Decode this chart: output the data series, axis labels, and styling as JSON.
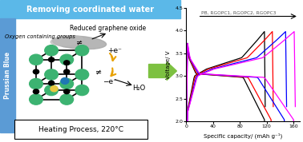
{
  "title_text": "Removing coordinated water",
  "title_bg": "#5bb8e8",
  "title_color": "white",
  "left_label": "Prussian Blue",
  "left_label_bg": "#5b9bd5",
  "top_right_label": "Reduced graphene oxide",
  "top_left_label": "Oxygen containing groups",
  "bottom_label": "Heating Process, 220°C",
  "xlabel": "Specific capacity/ (mAh g⁻¹)",
  "ylabel": "Voltage/ V",
  "ylim": [
    2.0,
    4.5
  ],
  "xlim": [
    0,
    170
  ],
  "yticks": [
    2.0,
    2.5,
    3.0,
    3.5,
    4.0,
    4.5
  ],
  "xticks": [
    0,
    40,
    80,
    120,
    160
  ],
  "legend_text": "PB, RGOPC1, RGOPC2, RGOPC3",
  "colors": {
    "PB": "#000000",
    "RGOPC1": "#ff0000",
    "RGOPC2": "#0000ff",
    "RGOPC3": "#ff00ff"
  },
  "green_arrow_color": "#7dc141",
  "figsize": [
    3.78,
    1.78
  ],
  "dpi": 100
}
